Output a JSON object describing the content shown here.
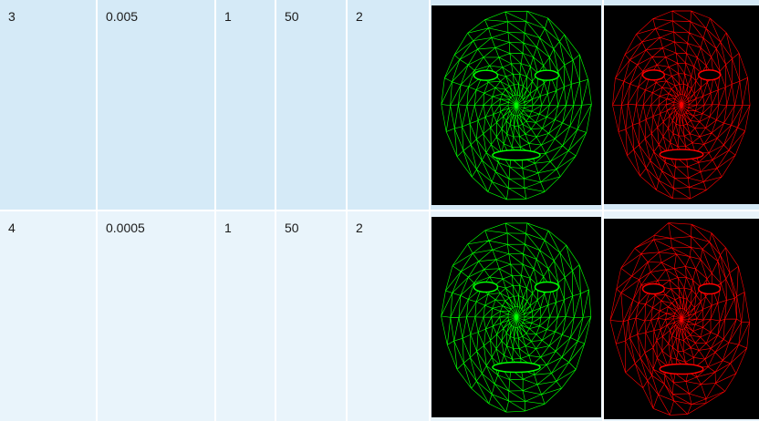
{
  "rows": [
    {
      "cells": [
        "3",
        "0.005",
        "1",
        "50",
        "2"
      ],
      "images": [
        {
          "icon": "green-face-mesh-icon",
          "color": "#00ff00"
        },
        {
          "icon": "red-face-mesh-icon",
          "color": "#ff0000"
        }
      ]
    },
    {
      "cells": [
        "4",
        "0.0005",
        "1",
        "50",
        "2"
      ],
      "images": [
        {
          "icon": "green-face-mesh-icon",
          "color": "#00ff00"
        },
        {
          "icon": "red-face-mesh-distorted-icon",
          "color": "#ff0000"
        }
      ]
    }
  ]
}
